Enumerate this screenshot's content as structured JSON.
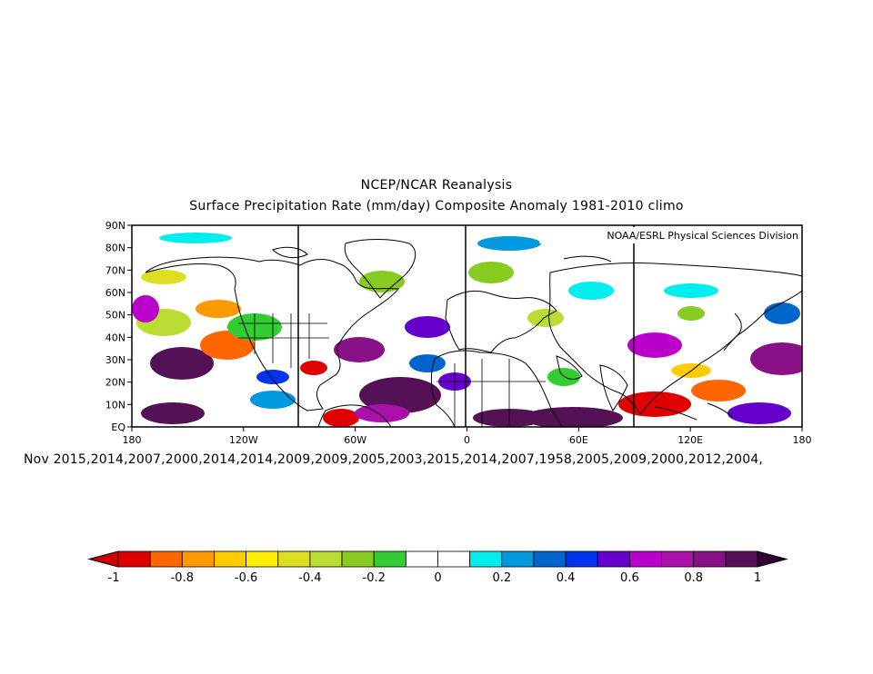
{
  "title_line1": "NCEP/NCAR Reanalysis",
  "title_line2": "Surface Precipitation Rate (mm/day) Composite Anomaly 1981-2010 climo",
  "credit": "NOAA/ESRL Physical Sciences Division",
  "composite_years": "Nov 2015,2014,2007,2000,2014,2014,2009,2009,2005,2003,2015,2014,2007,1958,2005,2009,2000,2012,2004,",
  "lat_ticks": [
    "90N",
    "80N",
    "70N",
    "60N",
    "50N",
    "40N",
    "30N",
    "20N",
    "10N",
    "EQ"
  ],
  "lon_ticks": [
    "180",
    "120W",
    "60W",
    "0",
    "60E",
    "120E",
    "180"
  ],
  "colorbar": {
    "labels": [
      "-1",
      "-0.8",
      "-0.6",
      "-0.4",
      "-0.2",
      "0",
      "0.2",
      "0.4",
      "0.6",
      "0.8",
      "1"
    ],
    "colors": [
      "#e00000",
      "#ff6600",
      "#ff9900",
      "#ffcc00",
      "#ffee00",
      "#dddd22",
      "#bbdd33",
      "#88cc22",
      "#33cc33",
      "#ffffff",
      "#ffffff",
      "#00eeee",
      "#0099dd",
      "#0066cc",
      "#0033ee",
      "#6600cc",
      "#bb00cc",
      "#aa11aa",
      "#881188",
      "#551155"
    ],
    "low_color": "#cc0000",
    "high_color": "#330033"
  }
}
